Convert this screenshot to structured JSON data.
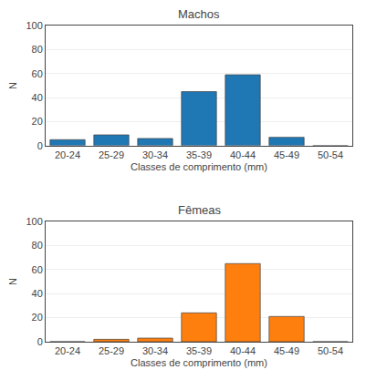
{
  "chart_data": [
    {
      "type": "bar",
      "title": "Machos",
      "categories": [
        "20-24",
        "25-29",
        "30-34",
        "35-39",
        "40-44",
        "45-49",
        "50-54"
      ],
      "values": [
        5,
        9,
        6,
        45,
        59,
        7,
        0
      ],
      "x_label": "Classes de comprimento (mm)",
      "y_label": "N",
      "ylim": [
        0,
        100
      ],
      "yticks": [
        0,
        20,
        40,
        60,
        80,
        100
      ],
      "grid": true
    },
    {
      "type": "bar",
      "title": "Fêmeas",
      "categories": [
        "20-24",
        "25-29",
        "30-34",
        "35-39",
        "40-44",
        "45-49",
        "50-54"
      ],
      "values": [
        0,
        2,
        3,
        24,
        65,
        21,
        0
      ],
      "x_label": "Classes de comprimento (mm)",
      "y_label": "N",
      "ylim": [
        0,
        100
      ],
      "yticks": [
        0,
        20,
        40,
        60,
        80,
        100
      ],
      "grid": true
    }
  ]
}
